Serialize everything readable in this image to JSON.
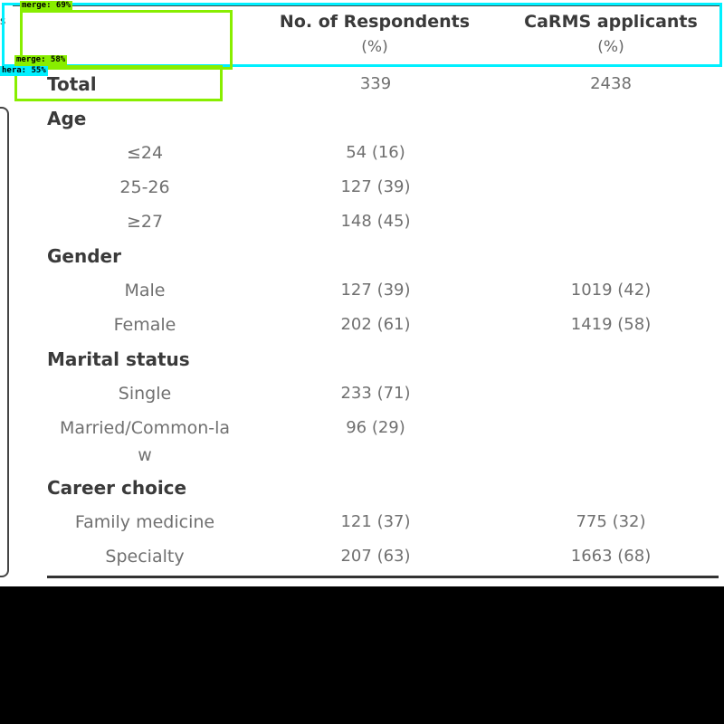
{
  "table": {
    "header": {
      "respondents": "No. of Respondents",
      "respondents_unit": "(%)",
      "carms": "CaRMS applicants",
      "carms_unit": "(%)"
    },
    "total": {
      "label": "Total",
      "respondents": "339",
      "carms": "2438"
    },
    "sections": [
      {
        "title": "Age",
        "rows": [
          {
            "label": "≤24",
            "respondents": "54 (16)",
            "carms": ""
          },
          {
            "label": "25-26",
            "respondents": "127 (39)",
            "carms": ""
          },
          {
            "label": "≥27",
            "respondents": "148 (45)",
            "carms": ""
          }
        ]
      },
      {
        "title": "Gender",
        "rows": [
          {
            "label": "Male",
            "respondents": "127 (39)",
            "carms": "1019 (42)"
          },
          {
            "label": "Female",
            "respondents": "202 (61)",
            "carms": "1419 (58)"
          }
        ]
      },
      {
        "title": "Marital status",
        "rows": [
          {
            "label": "Single",
            "respondents": "233 (71)",
            "carms": ""
          },
          {
            "label": "Married/Common-law",
            "respondents": "96 (29)",
            "carms": ""
          }
        ]
      },
      {
        "title": "Career choice",
        "rows": [
          {
            "label": "Family medicine",
            "respondents": "121 (37)",
            "carms": "775 (32)"
          },
          {
            "label": "Specialty",
            "respondents": "207 (63)",
            "carms": "1663 (68)"
          }
        ]
      }
    ]
  },
  "annotations": {
    "tag_green_top": "merge: 69%",
    "tag_green_mid": "merge: 58%",
    "tag_cyan": "hera: 55%",
    "colors": {
      "cyan": "#00f0ff",
      "green": "#88ee00"
    }
  },
  "edge_glyph": "s"
}
